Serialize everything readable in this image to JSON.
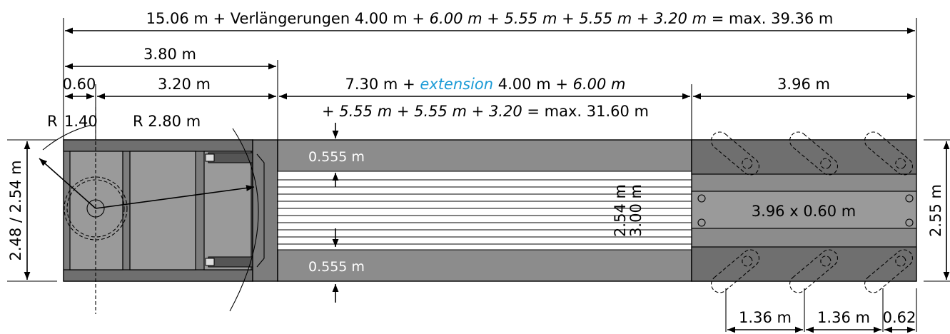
{
  "dimensions": {
    "total_length": {
      "prefix": "15.06 m + Verlängerungen 4.00 m + ",
      "italic": "6.00 m + 5.55 m + 5.55 m + 3.20 m",
      "suffix": " = max. 39.36 m"
    },
    "cab_length": "3.80 m",
    "front_overhang": "0.60",
    "cab_body": "3.20 m",
    "deck": {
      "line1_a": "7.30 m + ",
      "line1_ext": "extension",
      "line1_b": " 4.00 m + ",
      "line1_c": "6.00 m",
      "line2_a": "+ ",
      "line2_italic": "5.55 m + 5.55 m + 3.20",
      "line2_b": " = max. 31.60 m"
    },
    "rear_section": "3.96 m",
    "radius_inner_label": "R",
    "radius_inner_value": "1.40",
    "radius_outer": "R 2.80 m",
    "width_left": "2.48 / 2.54 m",
    "width_right": "2.55 m",
    "deck_strip_top": "0.555 m",
    "deck_strip_bottom": "0.555 m",
    "deck_width_1": "2.54 m",
    "deck_width_2": "3.00 m",
    "rear_platform": "3.96 x 0.60 m",
    "axle_spacing_1": "1.36 m",
    "axle_spacing_2": "1.36 m",
    "axle_rear": "0.62"
  },
  "colors": {
    "body": "#8c8c8c",
    "accent_blue": "#1a9ad6"
  }
}
